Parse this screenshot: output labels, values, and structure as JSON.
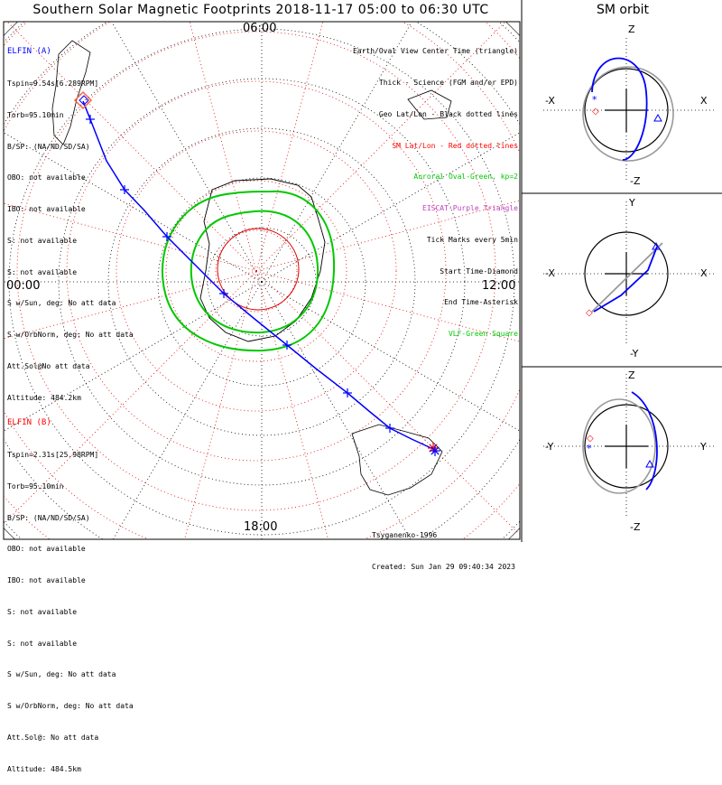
{
  "title": "Southern Solar Magnetic Footprints 2018-11-17 05:00 to 06:30 UTC",
  "orbit_title": "SM orbit",
  "colors": {
    "elfin_a": "#0000ff",
    "elfin_b": "#ff0000",
    "auroral": "#00c800",
    "sm_grid": "#dd0000",
    "vlf": "#00c800",
    "eiscat": "#c040c0",
    "grey_orbit": "#999999"
  },
  "hour_labels": {
    "top": "06:00",
    "left": "00:00",
    "right": "12:00",
    "bottom": "18:00"
  },
  "elfin_a": {
    "name": "ELFIN (A)",
    "lines": [
      "Tspin=9.54s[6.289RPM]",
      "Torb=95.10min",
      "B/SP: (NA/ND/SD/SA)",
      "OBO: not available",
      "IBO: not available",
      "S: not available",
      "S: not available",
      "S w/Sun, deg: No att data",
      "S w/OrbNorm, deg: No att data",
      "Att.Sol@No att data",
      "Altitude: 484.2km"
    ]
  },
  "elfin_b": {
    "name": "ELFIN (B)",
    "lines": [
      "Tspin=2.31s[25.98RPM]",
      "Torb=95.10min",
      "B/SP: (NA/ND/SD/SA)",
      "OBO: not available",
      "IBO: not available",
      "S: not available",
      "S: not available",
      "S w/Sun, deg: No att data",
      "S w/OrbNorm, deg: No att data",
      "Att.Sol@: No att data",
      "Altitude: 484.5km"
    ]
  },
  "legend": [
    {
      "text": "Earth/Oval View Center Time (triangle)",
      "color": "#000000"
    },
    {
      "text": "Thick - Science (FGM and/or EPD)",
      "color": "#000000"
    },
    {
      "text": "Geo Lat/Lon - Black dotted lines",
      "color": "#000000"
    },
    {
      "text": "SM Lat/Lon - Red dotted lines",
      "color": "#ff0000"
    },
    {
      "text": "Auroral Oval-Green, kp=2",
      "color": "#00c800"
    },
    {
      "text": "EISCAT-Purple Triangle",
      "color": "#c040c0"
    },
    {
      "text": "Tick Marks every 5min",
      "color": "#000000"
    },
    {
      "text": "Start Time-Diamond",
      "color": "#000000"
    },
    {
      "text": "End Time-Asterisk",
      "color": "#000000"
    },
    {
      "text": "VLF-Green Square",
      "color": "#00c800"
    }
  ],
  "credits": [
    "Tsyganenko-1996",
    "Created: Sun Jan 29 09:40:34 2023"
  ],
  "panels": [
    {
      "name": "xz",
      "top": "Z",
      "bottom": "-Z",
      "left": "-X",
      "right": "X"
    },
    {
      "name": "xy",
      "top": "Y",
      "bottom": "-Y",
      "left": "-X",
      "right": "X"
    },
    {
      "name": "yz",
      "top": "Z",
      "bottom": "-Z",
      "left": "-Y",
      "right": "Y"
    }
  ],
  "chart_data": {
    "type": "polar map",
    "hour_labels": [
      "06:00",
      "12:00",
      "18:00",
      "00:00"
    ],
    "auroral_oval_kp": 2,
    "tick_interval_min": 5,
    "series": [
      {
        "name": "ELFIN (A)",
        "start": "Start Time-Diamond",
        "end": "End Time-Asterisk"
      },
      {
        "name": "ELFIN (B)",
        "start": "Start Time-Diamond",
        "end": "End Time-Asterisk"
      }
    ]
  }
}
